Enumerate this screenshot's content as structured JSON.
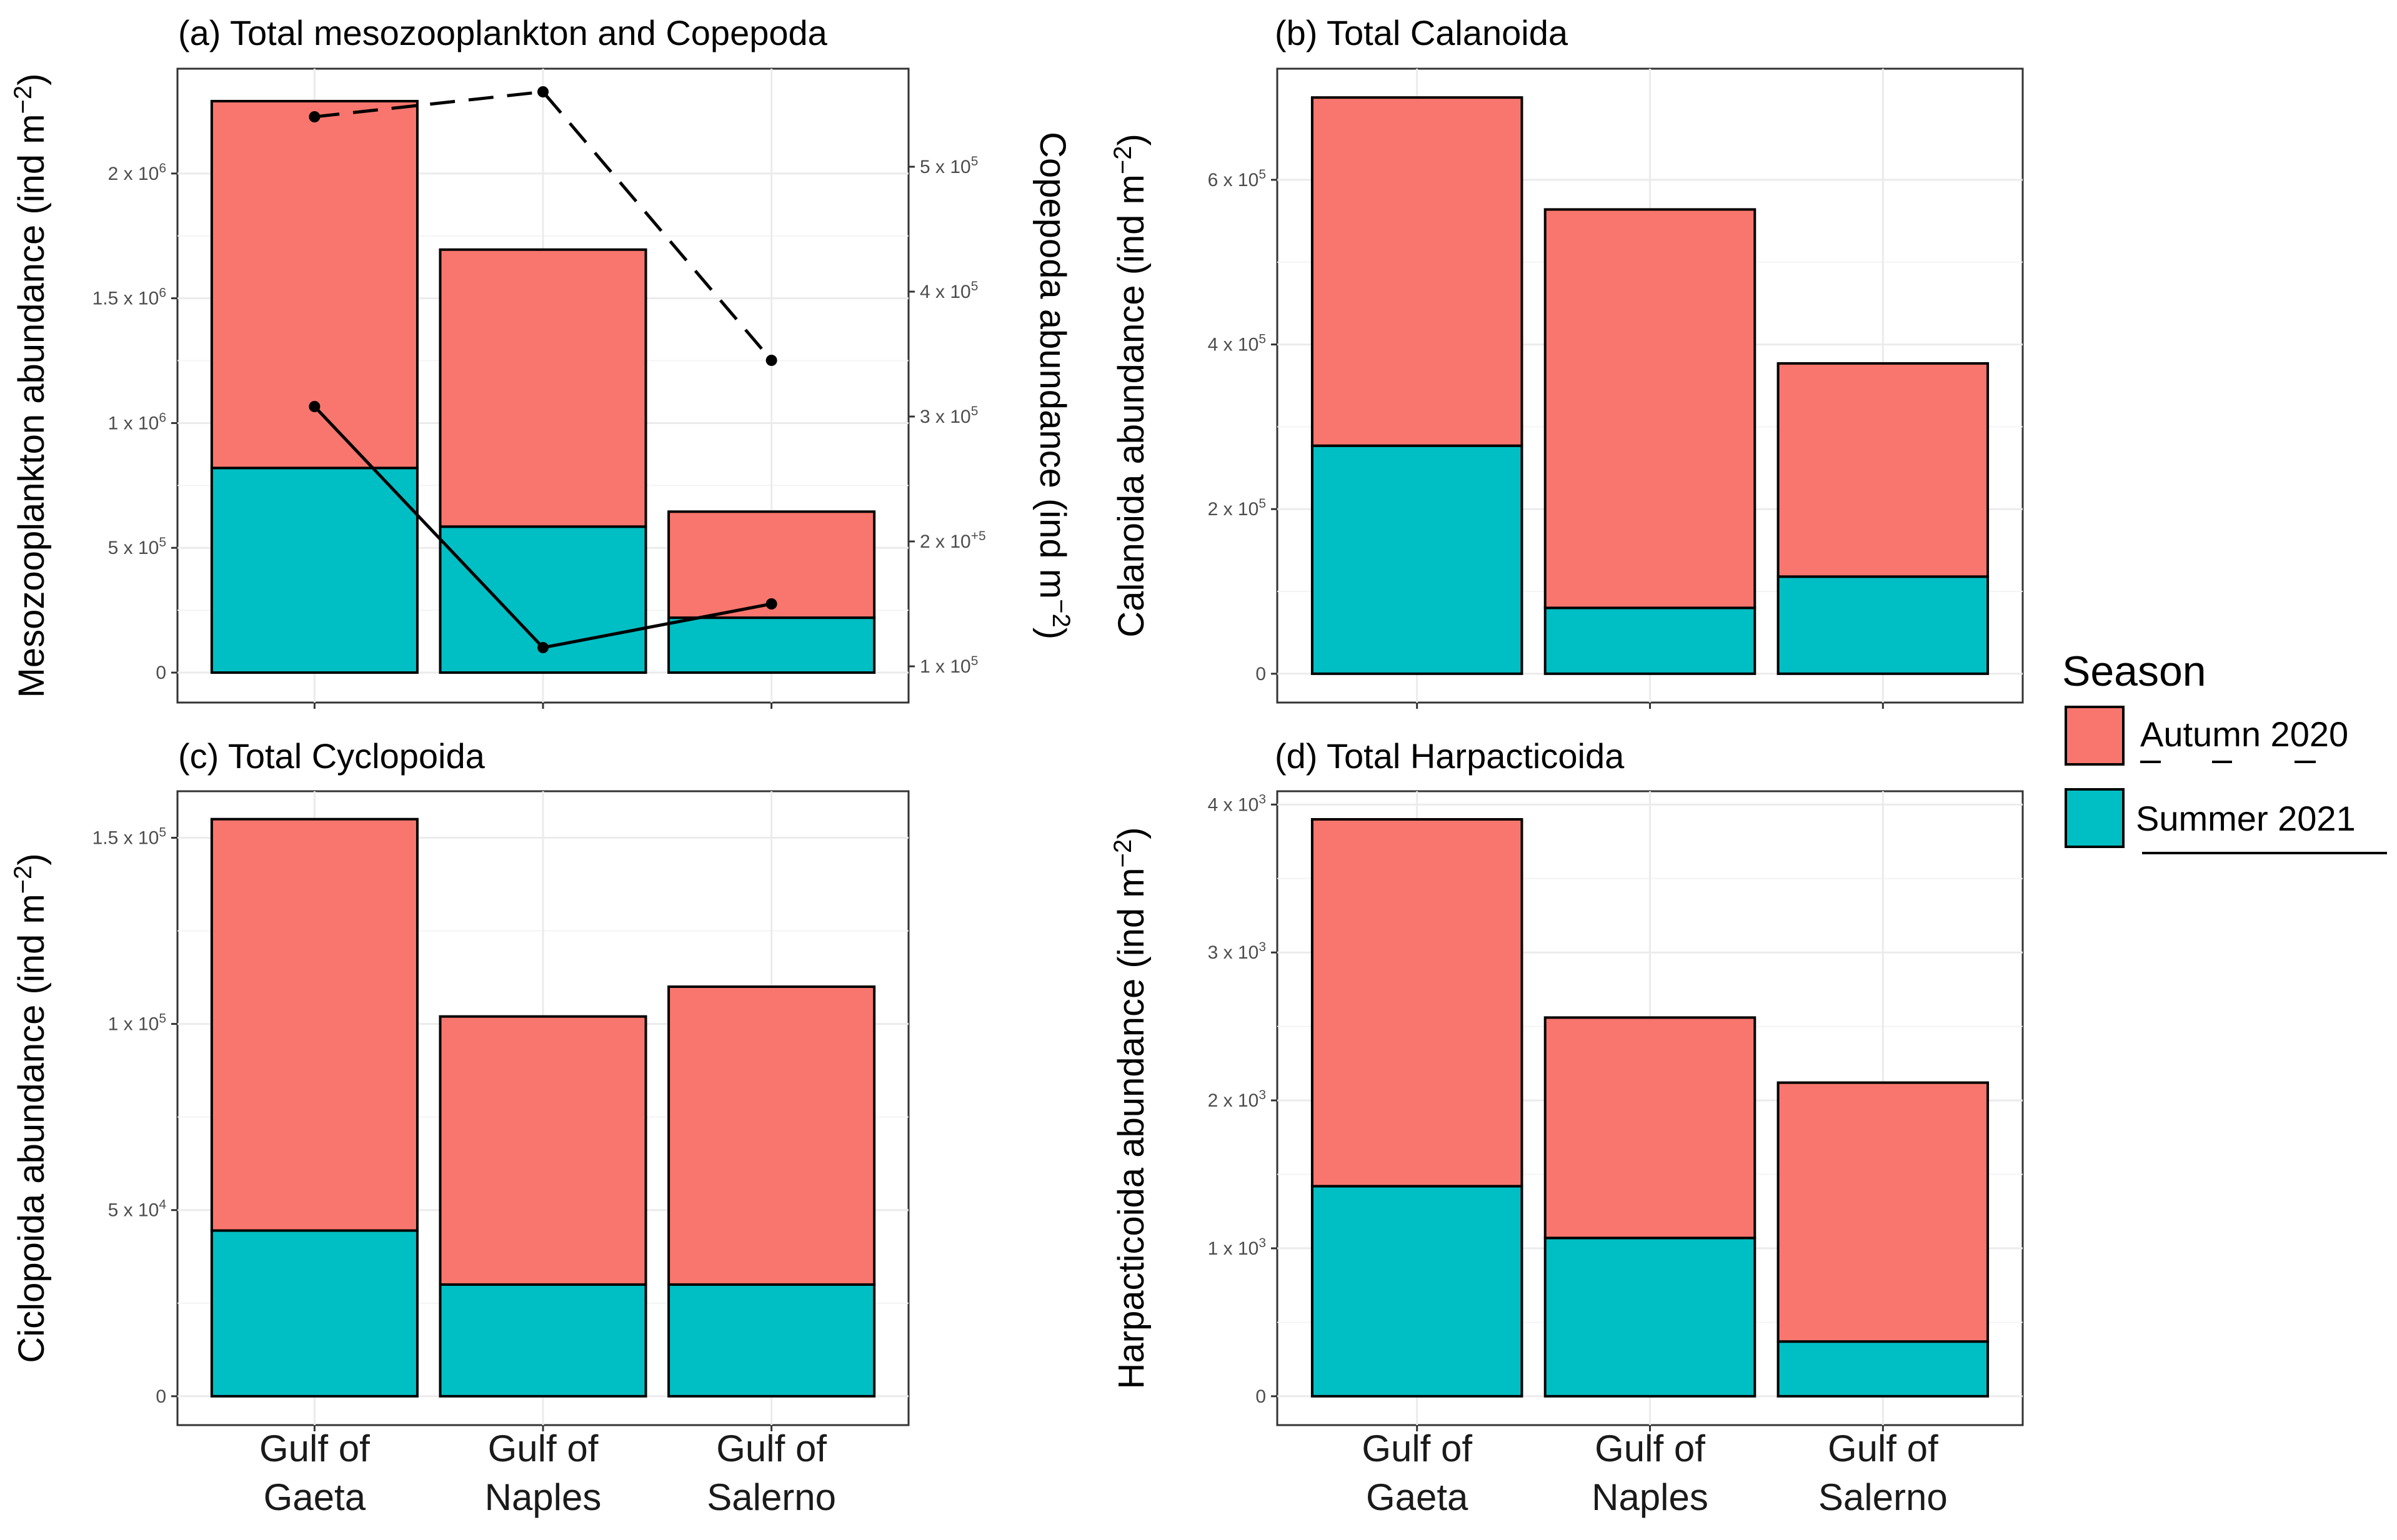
{
  "colors": {
    "autumn": "#F8766D",
    "summer": "#00BFC4"
  },
  "legend": {
    "title": "Season",
    "items": [
      {
        "label": "Autumn 2020",
        "color": "#F8766D",
        "key": "autumn"
      },
      {
        "label": "Summer 2021",
        "color": "#00BFC4",
        "key": "summer"
      }
    ]
  },
  "x_category_labels": [
    [
      "Gulf of",
      "Gaeta"
    ],
    [
      "Gulf of",
      "Naples"
    ],
    [
      "Gulf of",
      "Salerno"
    ]
  ],
  "chart_data": [
    {
      "id": "a",
      "type": "bar",
      "stacked": true,
      "title": "(a) Total mesozooplankton and Copepoda",
      "ylabel": "Mesozooplankton abundance (ind m",
      "ylabel_sup": "−2",
      "ylabel_close": ")",
      "categories": [
        "Gulf of Gaeta",
        "Gulf of Naples",
        "Gulf of Salerno"
      ],
      "ylim": [
        -120000,
        2420000
      ],
      "yticks": [
        {
          "value": 0,
          "base": "0",
          "exp": ""
        },
        {
          "value": 500000,
          "base": "5 x 10",
          "exp": "5"
        },
        {
          "value": 1000000,
          "base": "1 x 10",
          "exp": "6"
        },
        {
          "value": 1500000,
          "base": "1.5 x 10",
          "exp": "6"
        },
        {
          "value": 2000000,
          "base": "2 x 10",
          "exp": "6"
        }
      ],
      "series": [
        {
          "name": "Summer 2021",
          "key": "summer",
          "values": [
            820000,
            585000,
            220000
          ]
        },
        {
          "name": "Autumn 2020",
          "key": "autumn",
          "values": [
            1470000,
            1110000,
            425000
          ]
        }
      ],
      "secondary_axis": {
        "label": "Copepoda abundance (ind m",
        "label_sup": "−2",
        "label_close": ")",
        "ticks": [
          {
            "value": 100000,
            "base": "1 x 10",
            "exp": "5"
          },
          {
            "value": 200000,
            "base": "2 x 10",
            "exp": "+5"
          },
          {
            "value": 300000,
            "base": "3 x 10",
            "exp": "5"
          },
          {
            "value": 400000,
            "base": "4 x 10",
            "exp": "5"
          },
          {
            "value": 500000,
            "base": "5 x 10",
            "exp": "5"
          }
        ],
        "lines": [
          {
            "name": "Autumn 2020",
            "style": "dashed",
            "values": [
              540000,
              560000,
              345000
            ]
          },
          {
            "name": "Summer 2021",
            "style": "solid",
            "values": [
              308000,
              115000,
              150000
            ]
          }
        ]
      }
    },
    {
      "id": "b",
      "type": "bar",
      "stacked": true,
      "title": "(b) Total Calanoida",
      "ylabel": "Calanoida abundance (ind m",
      "ylabel_sup": "−2",
      "ylabel_close": ")",
      "categories": [
        "Gulf of Gaeta",
        "Gulf of Naples",
        "Gulf of Salerno"
      ],
      "ylim": [
        -35000,
        735000
      ],
      "yticks": [
        {
          "value": 0,
          "base": "0",
          "exp": ""
        },
        {
          "value": 200000,
          "base": "2 x 10",
          "exp": "5"
        },
        {
          "value": 400000,
          "base": "4 x 10",
          "exp": "5"
        },
        {
          "value": 600000,
          "base": "6 x 10",
          "exp": "5"
        }
      ],
      "series": [
        {
          "name": "Summer 2021",
          "key": "summer",
          "values": [
            277000,
            80000,
            118000
          ]
        },
        {
          "name": "Autumn 2020",
          "key": "autumn",
          "values": [
            423000,
            484000,
            259000
          ]
        }
      ]
    },
    {
      "id": "c",
      "type": "bar",
      "stacked": true,
      "title": "(c) Total Cyclopoida",
      "ylabel": "Ciclopoida abundance (ind m",
      "ylabel_sup": "−2",
      "ylabel_close": ")",
      "categories": [
        "Gulf of Gaeta",
        "Gulf of Naples",
        "Gulf of Salerno"
      ],
      "ylim": [
        -7750,
        162500
      ],
      "yticks": [
        {
          "value": 0,
          "base": "0",
          "exp": ""
        },
        {
          "value": 50000,
          "base": "5 x 10",
          "exp": "4"
        },
        {
          "value": 100000,
          "base": "1 x 10",
          "exp": "5"
        },
        {
          "value": 150000,
          "base": "1.5 x 10",
          "exp": "5"
        }
      ],
      "series": [
        {
          "name": "Summer 2021",
          "key": "summer",
          "values": [
            44500,
            30000,
            30000
          ]
        },
        {
          "name": "Autumn 2020",
          "key": "autumn",
          "values": [
            110500,
            72000,
            80000
          ]
        }
      ]
    },
    {
      "id": "d",
      "type": "bar",
      "stacked": true,
      "title": "(d) Total Harpacticoida",
      "ylabel": "Harpacticoida abundance (ind m",
      "ylabel_sup": "−2",
      "ylabel_close": ")",
      "categories": [
        "Gulf of Gaeta",
        "Gulf of Naples",
        "Gulf of Salerno"
      ],
      "ylim": [
        -195,
        4090
      ],
      "yticks": [
        {
          "value": 0,
          "base": "0",
          "exp": ""
        },
        {
          "value": 1000,
          "base": "1 x 10",
          "exp": "3"
        },
        {
          "value": 2000,
          "base": "2 x 10",
          "exp": "3"
        },
        {
          "value": 3000,
          "base": "3 x 10",
          "exp": "3"
        },
        {
          "value": 4000,
          "base": "4 x 10",
          "exp": "3"
        }
      ],
      "series": [
        {
          "name": "Summer 2021",
          "key": "summer",
          "values": [
            1420,
            1070,
            370
          ]
        },
        {
          "name": "Autumn 2020",
          "key": "autumn",
          "values": [
            2480,
            1490,
            1750
          ]
        }
      ]
    }
  ]
}
